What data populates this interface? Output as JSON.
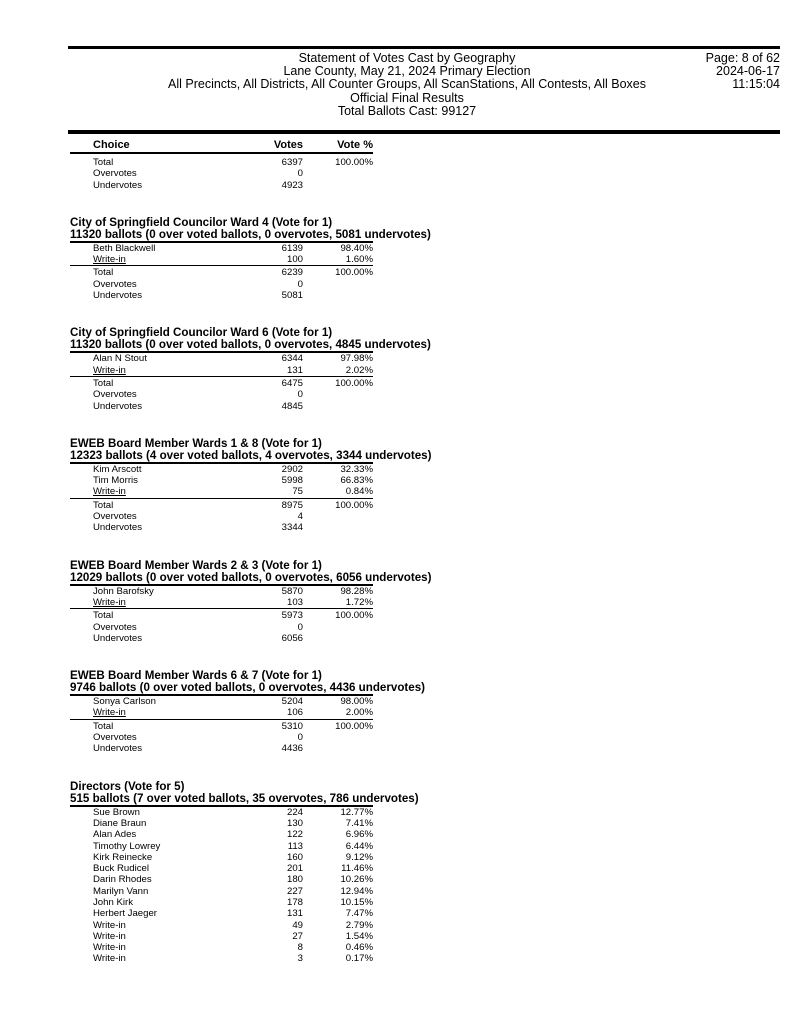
{
  "header": {
    "lines": [
      "Statement of Votes Cast by Geography",
      "Lane County, May 21, 2024 Primary Election",
      "All Precincts, All Districts, All Counter Groups, All ScanStations, All Contests, All Boxes",
      "Official Final Results",
      "Total Ballots Cast: 99127"
    ],
    "page": "Page: 8 of 62",
    "date": "2024-06-17",
    "time": "11:15:04"
  },
  "columns": {
    "choice": "Choice",
    "votes": "Votes",
    "pct": "Vote %"
  },
  "carryover": {
    "totals": [
      {
        "label": "Total",
        "votes": "6397",
        "pct": "100.00%"
      },
      {
        "label": "Overvotes",
        "votes": "0",
        "pct": ""
      },
      {
        "label": "Undervotes",
        "votes": "4923",
        "pct": ""
      }
    ]
  },
  "contests": [
    {
      "title": "City of Springfield Councilor Ward 4 (Vote for 1)",
      "ballots": "11320 ballots (0 over voted ballots, 0 overvotes, 5081 undervotes)",
      "candidates": [
        {
          "name": "Beth Blackwell",
          "votes": "6139",
          "pct": "98.40%"
        },
        {
          "name": "Write-in",
          "votes": "100",
          "pct": "1.60%"
        }
      ],
      "totals": [
        {
          "label": "Total",
          "votes": "6239",
          "pct": "100.00%"
        },
        {
          "label": "Overvotes",
          "votes": "0",
          "pct": ""
        },
        {
          "label": "Undervotes",
          "votes": "5081",
          "pct": ""
        }
      ]
    },
    {
      "title": "City of Springfield Councilor Ward 6 (Vote for 1)",
      "ballots": "11320 ballots (0 over voted ballots, 0 overvotes, 4845 undervotes)",
      "candidates": [
        {
          "name": "Alan N Stout",
          "votes": "6344",
          "pct": "97.98%"
        },
        {
          "name": "Write-in",
          "votes": "131",
          "pct": "2.02%"
        }
      ],
      "totals": [
        {
          "label": "Total",
          "votes": "6475",
          "pct": "100.00%"
        },
        {
          "label": "Overvotes",
          "votes": "0",
          "pct": ""
        },
        {
          "label": "Undervotes",
          "votes": "4845",
          "pct": ""
        }
      ]
    },
    {
      "title": "EWEB Board Member Wards 1 & 8 (Vote for 1)",
      "ballots": "12323 ballots (4 over voted ballots, 4 overvotes, 3344 undervotes)",
      "candidates": [
        {
          "name": "Kim Arscott",
          "votes": "2902",
          "pct": "32.33%"
        },
        {
          "name": "Tim Morris",
          "votes": "5998",
          "pct": "66.83%"
        },
        {
          "name": "Write-in",
          "votes": "75",
          "pct": "0.84%"
        }
      ],
      "totals": [
        {
          "label": "Total",
          "votes": "8975",
          "pct": "100.00%"
        },
        {
          "label": "Overvotes",
          "votes": "4",
          "pct": ""
        },
        {
          "label": "Undervotes",
          "votes": "3344",
          "pct": ""
        }
      ]
    },
    {
      "title": "EWEB Board Member Wards 2 & 3 (Vote for 1)",
      "ballots": "12029 ballots (0 over voted ballots, 0 overvotes, 6056 undervotes)",
      "candidates": [
        {
          "name": "John Barofsky",
          "votes": "5870",
          "pct": "98.28%"
        },
        {
          "name": "Write-in",
          "votes": "103",
          "pct": "1.72%"
        }
      ],
      "totals": [
        {
          "label": "Total",
          "votes": "5973",
          "pct": "100.00%"
        },
        {
          "label": "Overvotes",
          "votes": "0",
          "pct": ""
        },
        {
          "label": "Undervotes",
          "votes": "6056",
          "pct": ""
        }
      ]
    },
    {
      "title": "EWEB Board Member Wards 6 & 7 (Vote for 1)",
      "ballots": "9746 ballots (0 over voted ballots, 0 overvotes, 4436 undervotes)",
      "candidates": [
        {
          "name": "Sonya Carlson",
          "votes": "5204",
          "pct": "98.00%"
        },
        {
          "name": "Write-in",
          "votes": "106",
          "pct": "2.00%"
        }
      ],
      "totals": [
        {
          "label": "Total",
          "votes": "5310",
          "pct": "100.00%"
        },
        {
          "label": "Overvotes",
          "votes": "0",
          "pct": ""
        },
        {
          "label": "Undervotes",
          "votes": "4436",
          "pct": ""
        }
      ]
    },
    {
      "title": "Directors (Vote for 5)",
      "ballots": "515 ballots (7 over voted ballots, 35 overvotes, 786 undervotes)",
      "candidates": [
        {
          "name": "Sue Brown",
          "votes": "224",
          "pct": "12.77%"
        },
        {
          "name": "Diane Braun",
          "votes": "130",
          "pct": "7.41%"
        },
        {
          "name": "Alan Ades",
          "votes": "122",
          "pct": "6.96%"
        },
        {
          "name": "Timothy Lowrey",
          "votes": "113",
          "pct": "6.44%"
        },
        {
          "name": "Kirk Reinecke",
          "votes": "160",
          "pct": "9.12%"
        },
        {
          "name": "Buck Rudicel",
          "votes": "201",
          "pct": "11.46%"
        },
        {
          "name": "Darin Rhodes",
          "votes": "180",
          "pct": "10.26%"
        },
        {
          "name": "Marilyn Vann",
          "votes": "227",
          "pct": "12.94%"
        },
        {
          "name": "John Kirk",
          "votes": "178",
          "pct": "10.15%"
        },
        {
          "name": "Herbert Jaeger",
          "votes": "131",
          "pct": "7.47%"
        },
        {
          "name": "Write-in",
          "votes": "49",
          "pct": "2.79%"
        },
        {
          "name": "Write-in",
          "votes": "27",
          "pct": "1.54%"
        },
        {
          "name": "Write-in",
          "votes": "8",
          "pct": "0.46%"
        },
        {
          "name": "Write-in",
          "votes": "3",
          "pct": "0.17%"
        }
      ],
      "totals": [],
      "continues": true
    }
  ]
}
